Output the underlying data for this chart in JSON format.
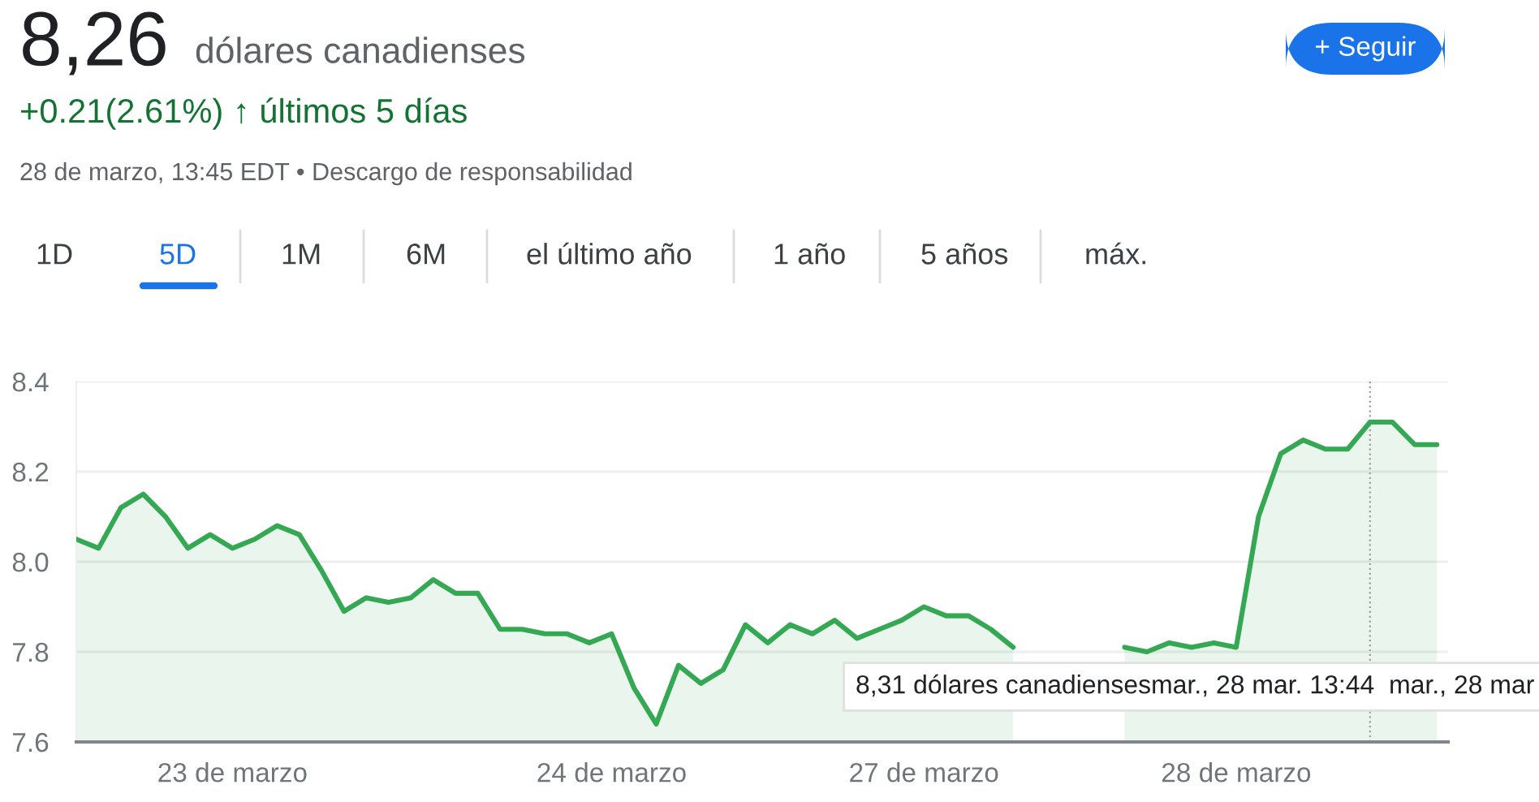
{
  "chart_data": {
    "type": "area",
    "title": "8,26",
    "subtitle": "dólares canadienses",
    "annotations": [
      "+0.21(2.61%) ↑ últimos 5 días",
      "28 de marzo, 13:45 EDT • Descargo de responsabilidad",
      "1D",
      "5D",
      "1M",
      "6M",
      "el último año",
      "1 año",
      "5 años",
      "máx.",
      "+ Seguir",
      "8,31 dólares canadiensesmar., 28 mar. 13:44  mar., 28 mar"
    ],
    "categories": [
      null,
      null,
      null,
      null,
      null,
      null,
      null,
      "23 de marzo",
      null,
      null,
      null,
      null,
      null,
      null,
      null,
      null,
      null,
      null,
      null,
      null,
      null,
      null,
      null,
      null,
      "24 de marzo",
      null,
      null,
      null,
      null,
      null,
      null,
      null,
      null,
      null,
      null,
      null,
      null,
      null,
      "27 de marzo",
      null,
      null,
      null,
      null,
      null,
      null,
      null,
      null,
      null,
      null,
      null,
      null,
      null,
      "28 de marzo",
      null,
      null,
      null,
      null,
      null,
      null,
      null,
      null,
      null
    ],
    "series": [
      {
        "color": "#34a853",
        "values": [
          8.05,
          8.03,
          8.12,
          8.15,
          8.1,
          8.03,
          8.06,
          8.03,
          8.05,
          8.08,
          8.06,
          7.98,
          7.89,
          7.92,
          7.91,
          7.92,
          7.96,
          7.93,
          7.93,
          7.85,
          7.85,
          7.84,
          7.84,
          7.82,
          7.84,
          7.72,
          7.64,
          7.77,
          7.73,
          7.76,
          7.86,
          7.82,
          7.86,
          7.84,
          7.87,
          7.83,
          7.85,
          7.87,
          7.9,
          7.88,
          7.88,
          7.85,
          7.81,
          null,
          null,
          null,
          null,
          7.81,
          7.8,
          7.82,
          7.81,
          7.82,
          7.81,
          8.1,
          8.24,
          8.27,
          8.25,
          8.25,
          8.31,
          8.31,
          8.26,
          8.26
        ]
      }
    ],
    "ylim": [
      7.6,
      8.4
    ],
    "yticks": [
      7.6,
      7.8,
      {
        "value": 8.0,
        "label": "8.0"
      },
      8.2,
      8.4
    ],
    "grid": "y"
  }
}
